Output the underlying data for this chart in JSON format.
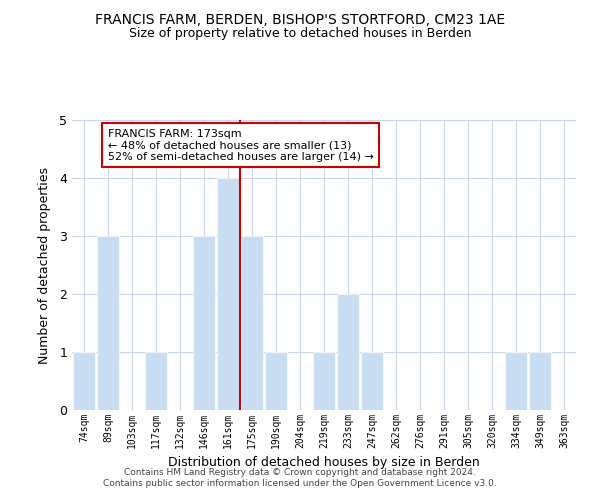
{
  "title": "FRANCIS FARM, BERDEN, BISHOP'S STORTFORD, CM23 1AE",
  "subtitle": "Size of property relative to detached houses in Berden",
  "xlabel": "Distribution of detached houses by size in Berden",
  "ylabel": "Number of detached properties",
  "bins": [
    "74sqm",
    "89sqm",
    "103sqm",
    "117sqm",
    "132sqm",
    "146sqm",
    "161sqm",
    "175sqm",
    "190sqm",
    "204sqm",
    "219sqm",
    "233sqm",
    "247sqm",
    "262sqm",
    "276sqm",
    "291sqm",
    "305sqm",
    "320sqm",
    "334sqm",
    "349sqm",
    "363sqm"
  ],
  "values": [
    1,
    3,
    0,
    1,
    0,
    3,
    4,
    3,
    1,
    0,
    1,
    2,
    1,
    0,
    0,
    0,
    0,
    0,
    1,
    1,
    0
  ],
  "highlight_line_index": 7,
  "bar_color": "#c9ddf2",
  "highlight_line_color": "#cc0000",
  "annotation_line1": "FRANCIS FARM: 173sqm",
  "annotation_line2": "← 48% of detached houses are smaller (13)",
  "annotation_line3": "52% of semi-detached houses are larger (14) →",
  "annotation_box_facecolor": "#ffffff",
  "annotation_box_edgecolor": "#cc0000",
  "ylim": [
    0,
    5
  ],
  "yticks": [
    0,
    1,
    2,
    3,
    4,
    5
  ],
  "footer_text": "Contains HM Land Registry data © Crown copyright and database right 2024.\nContains public sector information licensed under the Open Government Licence v3.0.",
  "background_color": "#ffffff",
  "grid_color": "#c8d4e8"
}
